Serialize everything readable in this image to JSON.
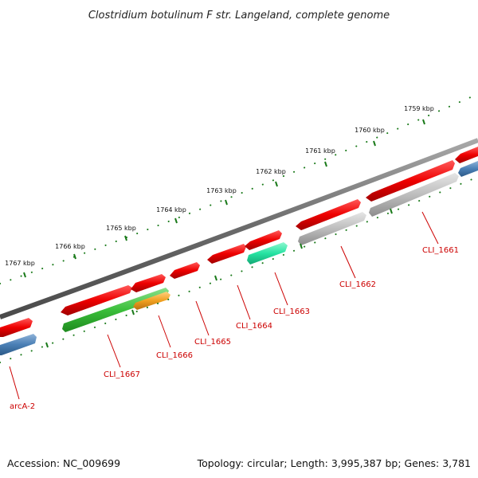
{
  "title": "Clostridium botulinum F str. Langeland, complete genome",
  "footer": {
    "accession": "Accession: NC_009699",
    "topology": "Topology: circular; Length: 3,995,387 bp; Genes: 3,781"
  },
  "ruler_ticks": [
    "1759 kbp",
    "1760 kbp",
    "1761 kbp",
    "1762 kbp",
    "1763 kbp",
    "1764 kbp",
    "1765 kbp",
    "1766 kbp",
    "1767 kbp"
  ],
  "gene_labels": [
    "CLI_1661",
    "CLI_1662",
    "CLI_1663",
    "CLI_1664",
    "CLI_1665",
    "CLI_1666",
    "CLI_1667",
    "arcA-2"
  ],
  "colors": {
    "backbone": "#7a7a7a",
    "ruler": "#1a7a1a",
    "forward_gene": "#e8000a",
    "reverse_cds_blue": "#4a7fb5",
    "reverse_cds_gray": "#b8b8b8",
    "reverse_cds_green": "#3bbf3b",
    "reverse_cds_teal": "#26e3a2",
    "reverse_cds_orange": "#f0a020",
    "label": "#cc0000"
  }
}
